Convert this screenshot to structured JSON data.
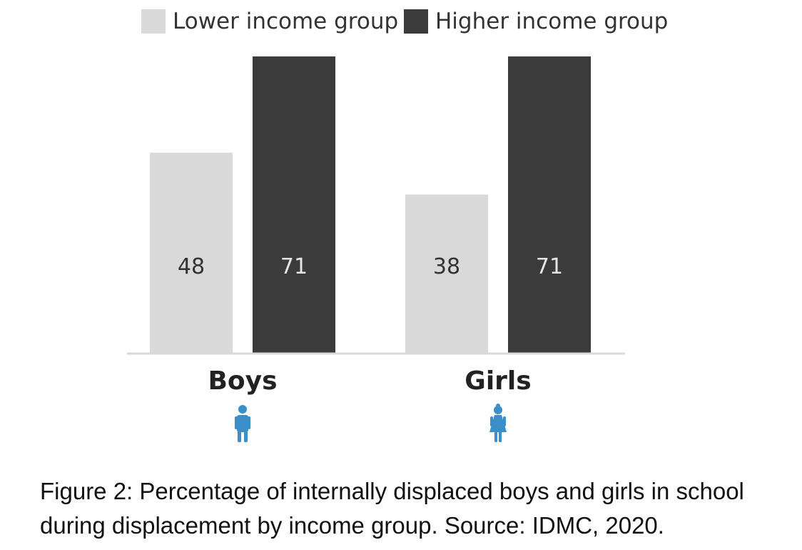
{
  "chart_data": {
    "type": "bar",
    "categories": [
      "Boys",
      "Girls"
    ],
    "series": [
      {
        "name": "Lower income group",
        "values": [
          48,
          38
        ],
        "color": "#d9d9d9",
        "label_color": "#333333"
      },
      {
        "name": "Higher income group",
        "values": [
          71,
          71
        ],
        "color": "#3b3b3b",
        "label_color": "#e6e6e6"
      }
    ],
    "ylim": [
      0,
      71
    ],
    "legend_position": "top-center",
    "grid": false,
    "category_icons": [
      "boy-icon",
      "girl-icon"
    ],
    "icon_color": "#3c8ec9",
    "axis_color": "#d9d9d9"
  },
  "caption": "Figure 2: Percentage of internally displaced boys and girls in school during displacement by income group. Source: IDMC, 2020."
}
